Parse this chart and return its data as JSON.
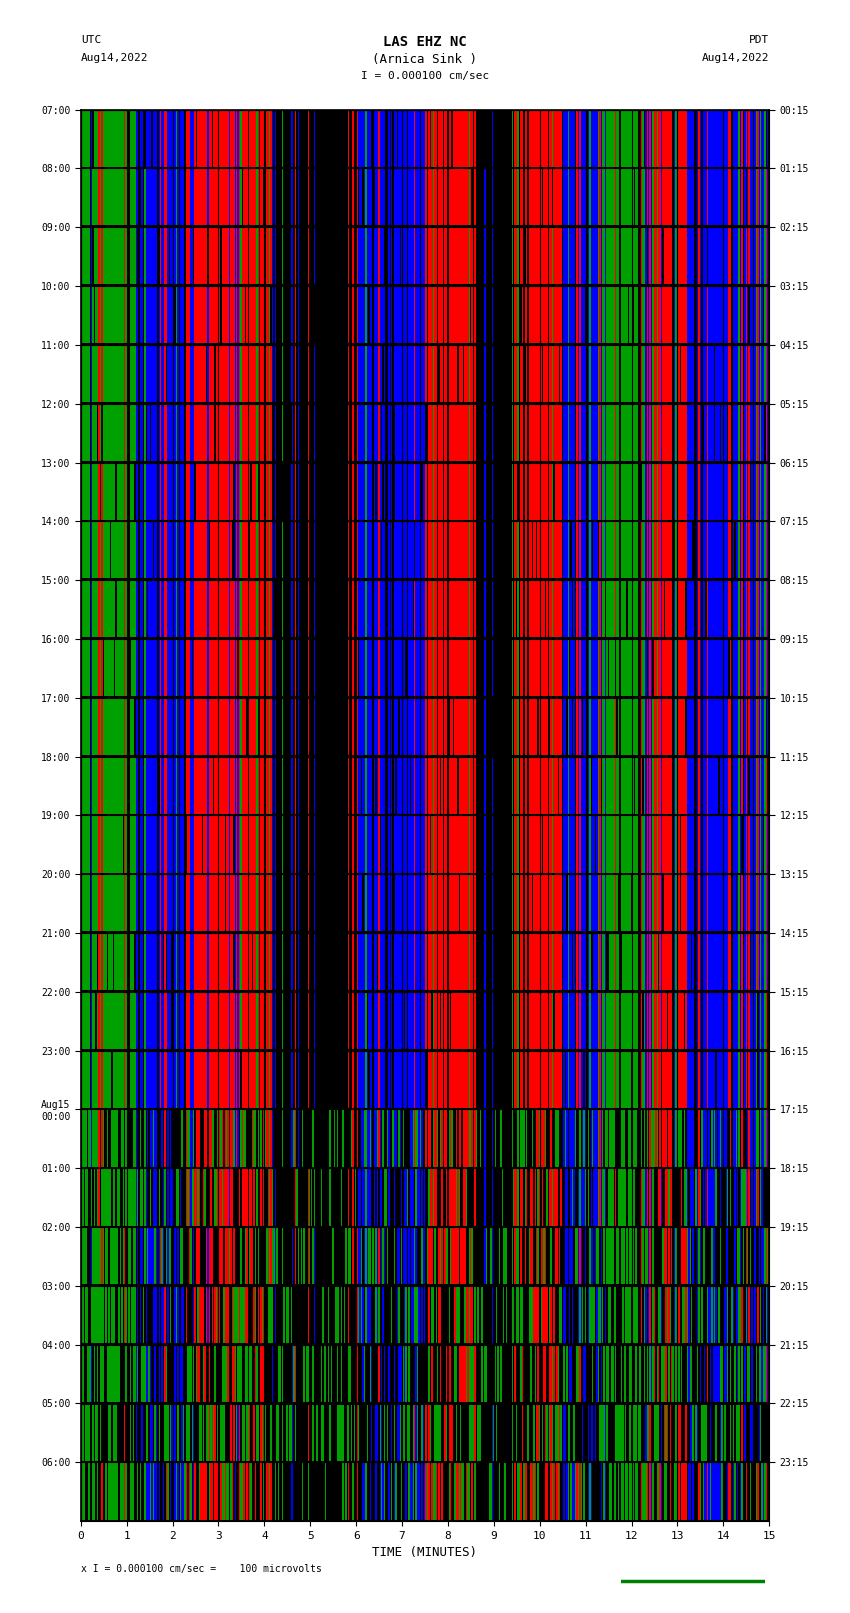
{
  "title_line1": "LAS EHZ NC",
  "title_line2": "(Arnica Sink )",
  "title_scale": "I = 0.000100 cm/sec",
  "left_date_line1": "UTC",
  "left_date_line2": "Aug14,2022",
  "right_date_line1": "PDT",
  "right_date_line2": "Aug14,2022",
  "footer": "x I = 0.000100 cm/sec =    100 microvolts",
  "xlabel": "TIME (MINUTES)",
  "xlim": [
    0,
    15
  ],
  "xticks": [
    0,
    1,
    2,
    3,
    4,
    5,
    6,
    7,
    8,
    9,
    10,
    11,
    12,
    13,
    14,
    15
  ],
  "num_rows": 24,
  "left_ytick_labels": [
    "07:00",
    "08:00",
    "09:00",
    "10:00",
    "11:00",
    "12:00",
    "13:00",
    "14:00",
    "15:00",
    "16:00",
    "17:00",
    "18:00",
    "19:00",
    "20:00",
    "21:00",
    "22:00",
    "23:00",
    "Aug15\n00:00",
    "01:00",
    "02:00",
    "03:00",
    "04:00",
    "05:00",
    "06:00"
  ],
  "right_ytick_labels": [
    "00:15",
    "01:15",
    "02:15",
    "03:15",
    "04:15",
    "05:15",
    "06:15",
    "07:15",
    "08:15",
    "09:15",
    "10:15",
    "11:15",
    "12:15",
    "13:15",
    "14:15",
    "15:15",
    "16:15",
    "17:15",
    "18:15",
    "19:15",
    "20:15",
    "21:15",
    "22:15",
    "23:15"
  ],
  "img_seed": 12345
}
